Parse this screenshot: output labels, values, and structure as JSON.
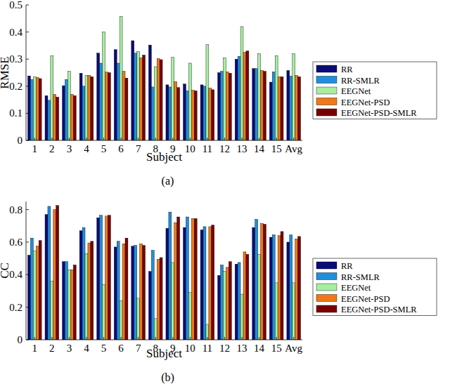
{
  "chart_data": [
    {
      "type": "bar",
      "title": "(a)",
      "x_label": "Subject",
      "y_label": "RMSE",
      "categories": [
        "1",
        "2",
        "3",
        "4",
        "5",
        "6",
        "7",
        "8",
        "9",
        "10",
        "11",
        "12",
        "13",
        "14",
        "15",
        "Avg"
      ],
      "ylim": [
        0,
        0.5
      ],
      "yticks": [
        0,
        0.1,
        0.2,
        0.3,
        0.4,
        0.5
      ],
      "grid": false,
      "legend": "right",
      "series": [
        {
          "name": "RR",
          "color": "#0b0b78",
          "values": [
            0.238,
            0.165,
            0.202,
            0.248,
            0.322,
            0.335,
            0.368,
            0.352,
            0.205,
            0.208,
            0.205,
            0.25,
            0.3,
            0.265,
            0.215,
            0.258
          ]
        },
        {
          "name": "RR-SMLR",
          "color": "#1f8fdc",
          "values": [
            0.225,
            0.148,
            0.225,
            0.2,
            0.285,
            0.285,
            0.322,
            0.197,
            0.197,
            0.183,
            0.2,
            0.255,
            0.31,
            0.265,
            0.253,
            0.237
          ]
        },
        {
          "name": "EEGNet",
          "color": "#a6eea0",
          "values": [
            0.235,
            0.313,
            0.255,
            0.24,
            0.4,
            0.457,
            0.328,
            0.272,
            0.307,
            0.285,
            0.353,
            0.305,
            0.42,
            0.32,
            0.313,
            0.32
          ]
        },
        {
          "name": "EEGNet-PSD",
          "color": "#f07818",
          "values": [
            0.232,
            0.17,
            0.17,
            0.24,
            0.252,
            0.255,
            0.305,
            0.302,
            0.217,
            0.185,
            0.193,
            0.253,
            0.325,
            0.258,
            0.235,
            0.24
          ]
        },
        {
          "name": "EEGNet-PSD-SMLR",
          "color": "#7a0000",
          "values": [
            0.228,
            0.16,
            0.165,
            0.235,
            0.25,
            0.23,
            0.315,
            0.298,
            0.195,
            0.183,
            0.187,
            0.248,
            0.33,
            0.255,
            0.235,
            0.235
          ]
        }
      ]
    },
    {
      "type": "bar",
      "title": "(b)",
      "x_label": "Subject",
      "y_label": "CC",
      "categories": [
        "1",
        "2",
        "3",
        "4",
        "5",
        "6",
        "7",
        "8",
        "9",
        "10",
        "11",
        "12",
        "13",
        "14",
        "15",
        "Avg"
      ],
      "ylim": [
        0,
        0.85
      ],
      "yticks": [
        0,
        0.2,
        0.4,
        0.6,
        0.8
      ],
      "grid": false,
      "legend": "right",
      "series": [
        {
          "name": "RR",
          "color": "#0b0b78",
          "values": [
            0.52,
            0.77,
            0.48,
            0.67,
            0.75,
            0.57,
            0.575,
            0.42,
            0.685,
            0.69,
            0.675,
            0.395,
            0.465,
            0.69,
            0.63,
            0.6
          ]
        },
        {
          "name": "RR-SMLR",
          "color": "#1f8fdc",
          "values": [
            0.625,
            0.82,
            0.48,
            0.69,
            0.765,
            0.605,
            0.58,
            0.55,
            0.785,
            0.755,
            0.695,
            0.46,
            0.475,
            0.74,
            0.645,
            0.645
          ]
        },
        {
          "name": "EEGNet",
          "color": "#a6eea0",
          "values": [
            0.545,
            0.36,
            0.43,
            0.53,
            0.34,
            0.24,
            0.255,
            0.13,
            0.475,
            0.29,
            0.095,
            0.42,
            0.28,
            0.525,
            0.35,
            0.35
          ]
        },
        {
          "name": "EEGNet-PSD",
          "color": "#f07818",
          "values": [
            0.575,
            0.8,
            0.43,
            0.595,
            0.76,
            0.59,
            0.59,
            0.495,
            0.72,
            0.745,
            0.695,
            0.445,
            0.54,
            0.715,
            0.64,
            0.62
          ]
        },
        {
          "name": "EEGNet-PSD-SMLR",
          "color": "#7a0000",
          "values": [
            0.61,
            0.825,
            0.46,
            0.605,
            0.765,
            0.625,
            0.58,
            0.505,
            0.755,
            0.745,
            0.705,
            0.48,
            0.525,
            0.71,
            0.665,
            0.635
          ]
        }
      ]
    }
  ]
}
